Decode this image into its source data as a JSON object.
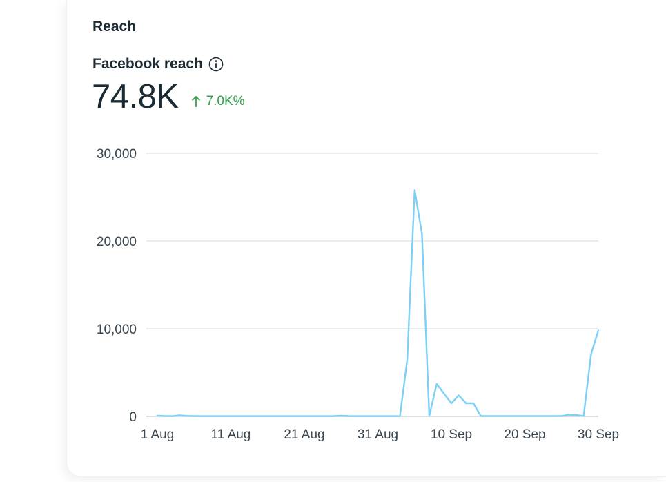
{
  "section": {
    "title": "Reach"
  },
  "metric": {
    "label": "Facebook reach",
    "value": "74.8K",
    "change": "7.0K%",
    "change_direction": "up",
    "info_icon": "info-icon",
    "change_color": "#31a24c"
  },
  "chart_data": {
    "type": "line",
    "title": "",
    "xlabel": "",
    "ylabel": "",
    "line_color": "#7cd0f5",
    "grid": true,
    "ylim": [
      0,
      30000
    ],
    "y_ticks": [
      0,
      10000,
      20000,
      30000
    ],
    "y_tick_labels": [
      "0",
      "10,000",
      "20,000",
      "30,000"
    ],
    "x_tick_labels": [
      "1 Aug",
      "11 Aug",
      "21 Aug",
      "31 Aug",
      "10 Sep",
      "20 Sep",
      "30 Sep"
    ],
    "x_tick_days": [
      0,
      10,
      20,
      30,
      40,
      50,
      60
    ],
    "series": [
      {
        "name": "Facebook reach",
        "x": [
          0,
          1,
          2,
          3,
          4,
          5,
          6,
          7,
          8,
          9,
          10,
          11,
          12,
          13,
          14,
          15,
          16,
          17,
          18,
          19,
          20,
          21,
          22,
          23,
          24,
          25,
          26,
          27,
          28,
          29,
          30,
          31,
          32,
          33,
          34,
          35,
          36,
          37,
          38,
          39,
          40,
          41,
          42,
          43,
          44,
          45,
          46,
          47,
          48,
          49,
          50,
          51,
          52,
          53,
          54,
          55,
          56,
          57,
          58,
          59,
          60
        ],
        "values": [
          80,
          50,
          30,
          120,
          60,
          40,
          30,
          30,
          30,
          30,
          30,
          30,
          30,
          30,
          30,
          30,
          30,
          30,
          30,
          30,
          30,
          30,
          30,
          30,
          40,
          80,
          40,
          30,
          30,
          30,
          30,
          30,
          30,
          30,
          6500,
          25800,
          20800,
          50,
          3700,
          2600,
          1500,
          2400,
          1500,
          1500,
          50,
          50,
          50,
          50,
          50,
          50,
          50,
          50,
          50,
          50,
          50,
          50,
          200,
          150,
          50,
          7100,
          9800
        ]
      }
    ]
  }
}
